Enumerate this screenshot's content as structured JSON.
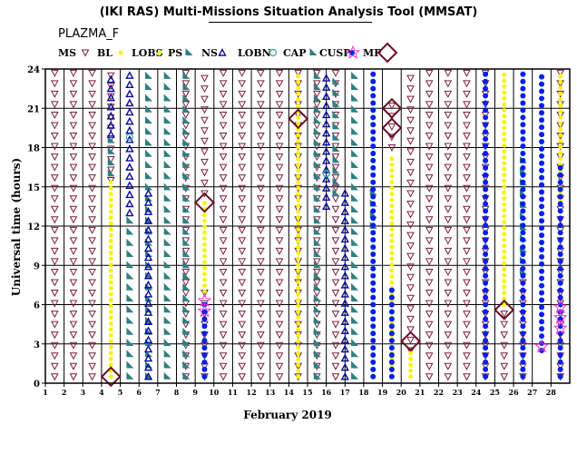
{
  "title": "(IKI RAS) Multi-Missions Situation Analysis Tool (MMSAT)",
  "subtitle": "PLAZMA_F",
  "colors": {
    "MS": "#7a1f3c",
    "BL": "#f5f500",
    "LOBS": "#f5f500",
    "PS": "#2f7f82",
    "NS": "#0a0a9a",
    "LOBN": "#2aa89a",
    "CAP": "#2f7f82",
    "CUSP": "#0020ee",
    "MP_star": "#ff33cc",
    "MP_diamond": "#6b1020"
  },
  "chart_data": {
    "type": "scatter",
    "title": "(IKI RAS) Multi-Missions Situation Analysis Tool (MMSAT)",
    "subtitle": "PLAZMA_F",
    "xlabel": "February 2019",
    "ylabel": "Universal time (hours)",
    "xlim": [
      1,
      29
    ],
    "ylim": [
      0,
      24
    ],
    "xticks": [
      1,
      2,
      3,
      4,
      5,
      6,
      7,
      8,
      9,
      10,
      11,
      12,
      13,
      14,
      15,
      16,
      17,
      18,
      19,
      20,
      21,
      22,
      23,
      24,
      25,
      26,
      27,
      28
    ],
    "yticks": [
      0,
      3,
      6,
      9,
      12,
      15,
      18,
      21,
      24
    ],
    "grid": true,
    "legend": {
      "placement": "top",
      "entries": [
        {
          "key": "MS",
          "label": "MS",
          "marker": "triangle-down"
        },
        {
          "key": "BL",
          "label": "BL",
          "marker": "dot"
        },
        {
          "key": "LOBS",
          "label": "LOBS",
          "marker": "dot"
        },
        {
          "key": "PS",
          "label": "PS",
          "marker": "flag"
        },
        {
          "key": "NS",
          "label": "NS",
          "marker": "triangle-up"
        },
        {
          "key": "LOBN",
          "label": "LOBN",
          "marker": "circle"
        },
        {
          "key": "CAP",
          "label": "CAP",
          "marker": "flag"
        },
        {
          "key": "CUSP",
          "label": "CUSP",
          "marker": "dot"
        },
        {
          "key": "MP",
          "label": "MP",
          "marker": "star-diamond"
        }
      ]
    },
    "series": [
      {
        "key": "MS",
        "segments": [
          {
            "day": 1.5,
            "from": 0.5,
            "to": 23.8
          },
          {
            "day": 2.5,
            "from": 0.5,
            "to": 23.8
          },
          {
            "day": 3.5,
            "from": 0.5,
            "to": 23.8
          },
          {
            "day": 4.5,
            "from": 15.5,
            "to": 23.8
          },
          {
            "day": 8.5,
            "from": 0.5,
            "to": 23.8
          },
          {
            "day": 9.5,
            "from": 0.5,
            "to": 7.0
          },
          {
            "day": 9.5,
            "from": 14.5,
            "to": 23.8
          },
          {
            "day": 10.5,
            "from": 0.5,
            "to": 23.8
          },
          {
            "day": 11.5,
            "from": 0.5,
            "to": 23.8
          },
          {
            "day": 12.5,
            "from": 0.5,
            "to": 23.8
          },
          {
            "day": 13.5,
            "from": 0.5,
            "to": 23.8
          },
          {
            "day": 14.5,
            "from": 0.5,
            "to": 23.8
          },
          {
            "day": 15.5,
            "from": 0.5,
            "to": 23.8
          },
          {
            "day": 16.5,
            "from": 0.5,
            "to": 23.8
          },
          {
            "day": 19.5,
            "from": 18.0,
            "to": 21.5
          },
          {
            "day": 20.5,
            "from": 2.5,
            "to": 23.8
          },
          {
            "day": 21.5,
            "from": 0.5,
            "to": 23.8
          },
          {
            "day": 22.5,
            "from": 0.5,
            "to": 23.8
          },
          {
            "day": 23.5,
            "from": 0.5,
            "to": 23.8
          },
          {
            "day": 24.5,
            "from": 0.5,
            "to": 23.8
          },
          {
            "day": 25.5,
            "from": 0.5,
            "to": 6.0
          },
          {
            "day": 26.5,
            "from": 0.5,
            "to": 8.0
          },
          {
            "day": 28.5,
            "from": 0.5,
            "to": 23.8
          }
        ]
      },
      {
        "key": "BL",
        "segments": [
          {
            "day": 4.5,
            "from": 0.5,
            "to": 15.5
          },
          {
            "day": 9.5,
            "from": 7.0,
            "to": 14.0
          },
          {
            "day": 14.5,
            "from": 0.5,
            "to": 23.8
          },
          {
            "day": 19.5,
            "from": 0.5,
            "to": 17.5
          },
          {
            "day": 20.5,
            "from": 0.5,
            "to": 2.5
          },
          {
            "day": 25.5,
            "from": 6.0,
            "to": 23.8
          },
          {
            "day": 28.5,
            "from": 14.0,
            "to": 23.8
          }
        ]
      },
      {
        "key": "PS",
        "segments": [
          {
            "day": 4.5,
            "from": 16.0,
            "to": 19.0
          },
          {
            "day": 5.5,
            "from": 0.5,
            "to": 13.0
          },
          {
            "day": 6.5,
            "from": 0.5,
            "to": 23.8
          },
          {
            "day": 7.5,
            "from": 0.5,
            "to": 23.8
          },
          {
            "day": 8.5,
            "from": 0.5,
            "to": 23.8
          },
          {
            "day": 15.5,
            "from": 0.5,
            "to": 23.8
          },
          {
            "day": 16.5,
            "from": 14.5,
            "to": 23.8
          },
          {
            "day": 17.5,
            "from": 0.5,
            "to": 23.8
          },
          {
            "day": 18.5,
            "from": 12.0,
            "to": 15.0
          },
          {
            "day": 26.5,
            "from": 8.5,
            "to": 17.0
          }
        ]
      },
      {
        "key": "NS",
        "segments": [
          {
            "day": 4.5,
            "from": 19.0,
            "to": 23.8
          },
          {
            "day": 5.5,
            "from": 13.0,
            "to": 23.8
          },
          {
            "day": 6.5,
            "from": 0.5,
            "to": 15.0
          },
          {
            "day": 16.0,
            "from": 13.5,
            "to": 23.8
          },
          {
            "day": 17.0,
            "from": 0.5,
            "to": 14.5
          }
        ]
      },
      {
        "key": "LOBN",
        "segments": [
          {
            "day": 5.5,
            "from": 18.8,
            "to": 18.8
          },
          {
            "day": 16.0,
            "from": 16.0,
            "to": 16.0
          }
        ]
      },
      {
        "key": "CUSP",
        "segments": [
          {
            "day": 9.5,
            "from": 0.5,
            "to": 6.0
          },
          {
            "day": 18.5,
            "from": 0.5,
            "to": 23.8
          },
          {
            "day": 19.5,
            "from": 0.5,
            "to": 7.5
          },
          {
            "day": 24.5,
            "from": 0.5,
            "to": 23.8
          },
          {
            "day": 26.5,
            "from": 0.5,
            "to": 23.8
          },
          {
            "day": 27.5,
            "from": 2.5,
            "to": 23.8
          },
          {
            "day": 28.5,
            "from": 0.5,
            "to": 16.5
          }
        ]
      },
      {
        "key": "MP_diamond",
        "points": [
          {
            "day": 4.5,
            "y": 0.5
          },
          {
            "day": 9.5,
            "y": 13.8
          },
          {
            "day": 14.5,
            "y": 20.2
          },
          {
            "day": 19.5,
            "y": 19.5
          },
          {
            "day": 19.5,
            "y": 21.0
          },
          {
            "day": 20.5,
            "y": 3.2
          },
          {
            "day": 25.5,
            "y": 5.6
          }
        ]
      },
      {
        "key": "MP_star",
        "points": [
          {
            "day": 9.5,
            "y": 5.5
          },
          {
            "day": 9.5,
            "y": 6.3
          },
          {
            "day": 27.5,
            "y": 2.8
          },
          {
            "day": 28.5,
            "y": 4.2
          },
          {
            "day": 28.5,
            "y": 5.0
          },
          {
            "day": 28.5,
            "y": 5.8
          }
        ]
      }
    ]
  }
}
